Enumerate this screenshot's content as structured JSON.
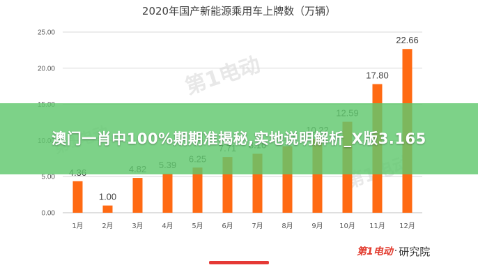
{
  "chart_data": {
    "type": "bar",
    "title": "2020年国产新能源乘用车上牌数（万辆）",
    "categories": [
      "1月",
      "2月",
      "3月",
      "4月",
      "5月",
      "6月",
      "7月",
      "8月",
      "9月",
      "10月",
      "11月",
      "12月"
    ],
    "values": [
      4.36,
      1.0,
      4.82,
      5.39,
      6.25,
      7.71,
      8.16,
      9.21,
      10.22,
      12.59,
      17.8,
      22.66
    ],
    "data_labels": [
      "4.36",
      "1.00",
      "4.82",
      "5.39",
      "6.25",
      "7.71",
      "8.16",
      "9.21",
      "10.22",
      "12.59",
      "17.80",
      "22.66"
    ],
    "yticks": [
      "0.00",
      "5.00",
      "10.00",
      "15.00",
      "20.00",
      "25.00"
    ],
    "ylim": [
      0,
      25
    ],
    "grid": true,
    "bar_color": "#ff6a13",
    "grid_color": "#d9d9d9"
  },
  "overlay": {
    "headline": "澳门一肖中100%期期准揭秘,实地说明解析_X版3.165",
    "banner_color": "#60c86e"
  },
  "watermark": {
    "logo": "第1电动",
    "brand": "研究院"
  }
}
